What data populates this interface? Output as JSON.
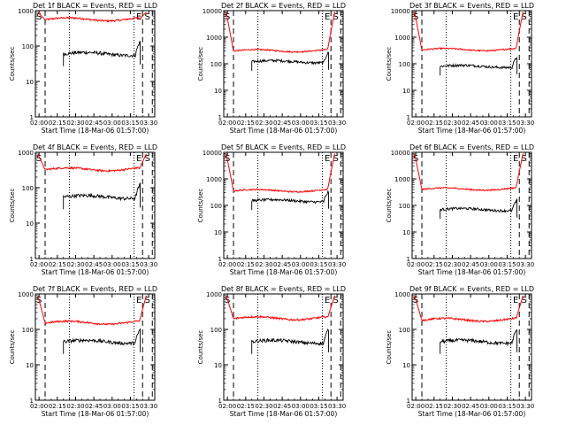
{
  "chart_data": {
    "type": "line",
    "shared": {
      "xlabel": "Start Time (18-Mar-06 01:57:00)",
      "ylabel": "Counts/sec",
      "x_ticks": [
        "02:00",
        "02:15",
        "02:30",
        "02:45",
        "03:00",
        "03:15",
        "03:30"
      ],
      "y_ticks": [
        "1",
        "10",
        "100",
        "1000"
      ],
      "y_ticks_big": [
        "1",
        "10",
        "100",
        "1000",
        "10000"
      ],
      "x_range_minutes": [
        0,
        98
      ],
      "y_scale": "log",
      "markers": {
        "dashed": [
          8,
          88,
          96
        ],
        "dotted": [
          28,
          81
        ],
        "letters": [
          "E",
          "S"
        ]
      },
      "series_colors": {
        "events": "#000000",
        "lld": "#ff0000"
      }
    },
    "panels": [
      {
        "title": "Det 1f BLACK = Events, RED = LLD",
        "ylim": [
          1,
          1000
        ],
        "lld_level": 550,
        "events_level": 60,
        "big": false,
        "events_start": 23
      },
      {
        "title": "Det 2f BLACK = Events, RED = LLD",
        "ylim": [
          1,
          10000
        ],
        "lld_level": 300,
        "events_level": 120,
        "big": true,
        "events_start": 23
      },
      {
        "title": "Det 3f BLACK = Events, RED = LLD",
        "ylim": [
          1,
          10000
        ],
        "lld_level": 330,
        "events_level": 80,
        "big": true,
        "events_start": 23
      },
      {
        "title": "Det 4f BLACK = Events, RED = LLD",
        "ylim": [
          1,
          1000
        ],
        "lld_level": 320,
        "events_level": 55,
        "big": false,
        "events_start": 23
      },
      {
        "title": "Det 5f BLACK = Events, RED = LLD",
        "ylim": [
          1,
          10000
        ],
        "lld_level": 350,
        "events_level": 150,
        "big": true,
        "events_start": 23
      },
      {
        "title": "Det 6f BLACK = Events, RED = LLD",
        "ylim": [
          1,
          10000
        ],
        "lld_level": 400,
        "events_level": 70,
        "big": true,
        "events_start": 23
      },
      {
        "title": "Det 7f BLACK = Events, RED = LLD",
        "ylim": [
          1,
          1000
        ],
        "lld_level": 150,
        "events_level": 45,
        "big": false,
        "events_start": 23
      },
      {
        "title": "Det 8f BLACK = Events, RED = LLD",
        "ylim": [
          1,
          1000
        ],
        "lld_level": 200,
        "events_level": 45,
        "big": false,
        "events_start": 23
      },
      {
        "title": "Det 9f BLACK = Events, RED = LLD",
        "ylim": [
          1,
          1000
        ],
        "lld_level": 180,
        "events_level": 45,
        "big": false,
        "events_start": 23
      }
    ]
  }
}
